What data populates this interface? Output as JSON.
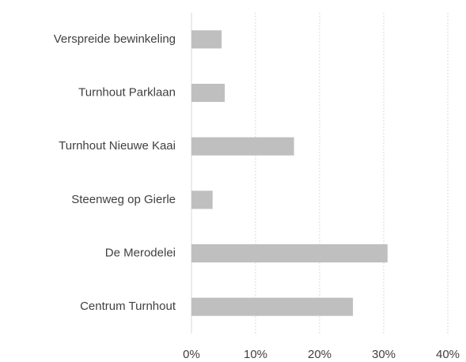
{
  "chart_data": {
    "type": "bar",
    "orientation": "horizontal",
    "categories": [
      "Verspreide bewinkeling",
      "Turnhout Parklaan",
      "Turnhout Nieuwe Kaai",
      "Steenweg op Gierle",
      "De Merodelei",
      "Centrum Turnhout"
    ],
    "values": [
      4.7,
      5.2,
      16,
      3.3,
      30.6,
      25.2
    ],
    "color": "#bfbfbf",
    "xlim": [
      0,
      40
    ],
    "xticks": [
      {
        "value": 0,
        "label": "0%"
      },
      {
        "value": 10,
        "label": "10%"
      },
      {
        "value": 20,
        "label": "20%"
      },
      {
        "value": 30,
        "label": "30%"
      },
      {
        "value": 40,
        "label": "40%"
      }
    ],
    "grid": true
  }
}
